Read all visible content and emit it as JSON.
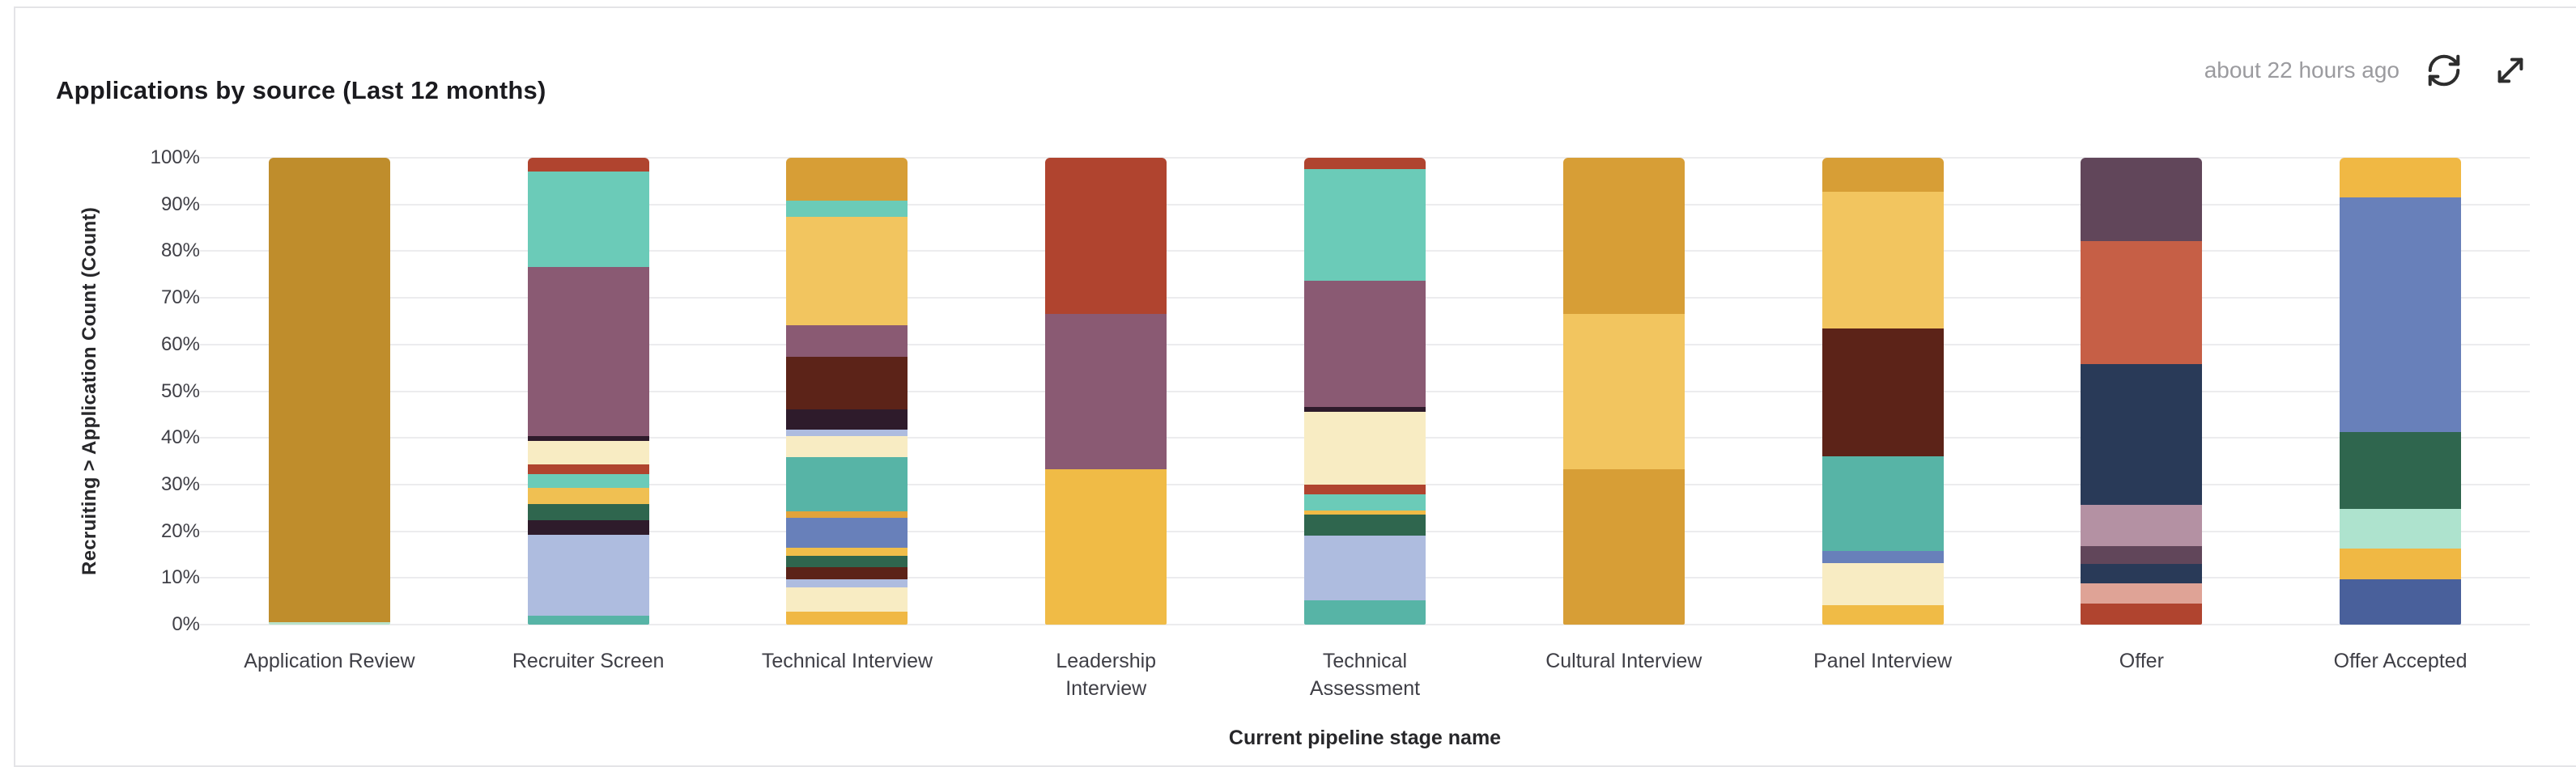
{
  "header": {
    "title": "Applications by source (Last 12 months)",
    "last_updated": "about 22 hours ago",
    "icons": [
      "refresh-icon",
      "expand-icon"
    ]
  },
  "chart_data": {
    "type": "bar",
    "variant": "stacked-percent",
    "title": "Applications by source (Last 12 months)",
    "xlabel": "Current pipeline stage name",
    "ylabel": "Recruiting > Application Count (Count)",
    "ylim": [
      0,
      100
    ],
    "grid": true,
    "legend": "none",
    "y_ticks": [
      "100%",
      "90%",
      "80%",
      "70%",
      "60%",
      "50%",
      "40%",
      "30%",
      "20%",
      "10%",
      "0%"
    ],
    "categories": [
      "Application Review",
      "Recruiter Screen",
      "Technical Interview",
      "Leadership\nInterview",
      "Technical\nAssessment",
      "Cultural Interview",
      "Panel Interview",
      "Offer",
      "Offer Accepted"
    ],
    "note": "segments listed top-to-bottom, values are percent of bar",
    "bars": [
      {
        "category": "Application Review",
        "segments": [
          {
            "color": "#BF8D2C",
            "value": 99.4
          },
          {
            "color": "#B9E3CB",
            "value": 0.6
          }
        ]
      },
      {
        "category": "Recruiter Screen",
        "segments": [
          {
            "color": "#B0442F",
            "value": 2.9
          },
          {
            "color": "#6BCBB8",
            "value": 20.5
          },
          {
            "color": "#8A5A73",
            "value": 36.2
          },
          {
            "color": "#2E1B2B",
            "value": 1.0
          },
          {
            "color": "#F8ECC3",
            "value": 5.1
          },
          {
            "color": "#B0442F",
            "value": 2.0
          },
          {
            "color": "#6BCBB8",
            "value": 3.1
          },
          {
            "color": "#F0C052",
            "value": 3.4
          },
          {
            "color": "#2F664E",
            "value": 3.4
          },
          {
            "color": "#2E1B2B",
            "value": 3.1
          },
          {
            "color": "#AEBCDF",
            "value": 17.4
          },
          {
            "color": "#57B4A6",
            "value": 1.9
          }
        ]
      },
      {
        "category": "Technical Interview",
        "segments": [
          {
            "color": "#D79E36",
            "value": 9.2
          },
          {
            "color": "#6BCBB8",
            "value": 3.4
          },
          {
            "color": "#F2C55F",
            "value": 23.2
          },
          {
            "color": "#8A5A73",
            "value": 6.8
          },
          {
            "color": "#5C2318",
            "value": 11.3
          },
          {
            "color": "#2E1B2B",
            "value": 4.4
          },
          {
            "color": "#AEBCDF",
            "value": 1.4
          },
          {
            "color": "#F8ECC3",
            "value": 4.4
          },
          {
            "color": "#57B4A6",
            "value": 11.6
          },
          {
            "color": "#E2A33A",
            "value": 1.4
          },
          {
            "color": "#6880BA",
            "value": 6.5
          },
          {
            "color": "#F0BE4A",
            "value": 1.7
          },
          {
            "color": "#2F664E",
            "value": 2.4
          },
          {
            "color": "#5C2318",
            "value": 2.7
          },
          {
            "color": "#AEBCDF",
            "value": 1.7
          },
          {
            "color": "#F8ECC3",
            "value": 5.1
          },
          {
            "color": "#F0B844",
            "value": 2.8
          }
        ]
      },
      {
        "category": "Leadership\nInterview",
        "segments": [
          {
            "color": "#B0442F",
            "value": 33.4
          },
          {
            "color": "#8A5A73",
            "value": 33.3
          },
          {
            "color": "#F0BB46",
            "value": 33.3
          }
        ]
      },
      {
        "category": "Technical\nAssessment",
        "segments": [
          {
            "color": "#B0442F",
            "value": 2.4
          },
          {
            "color": "#6BCBB8",
            "value": 23.9
          },
          {
            "color": "#8A5A73",
            "value": 27.1
          },
          {
            "color": "#2E1B2B",
            "value": 1.0
          },
          {
            "color": "#F8ECC3",
            "value": 15.7
          },
          {
            "color": "#B0442F",
            "value": 2.0
          },
          {
            "color": "#6BCBB8",
            "value": 3.4
          },
          {
            "color": "#F0BB46",
            "value": 0.9
          },
          {
            "color": "#2F664E",
            "value": 4.6
          },
          {
            "color": "#AEBCDF",
            "value": 13.8
          },
          {
            "color": "#57B4A6",
            "value": 5.2
          }
        ]
      },
      {
        "category": "Cultural Interview",
        "segments": [
          {
            "color": "#D79E36",
            "value": 33.4
          },
          {
            "color": "#F2C55F",
            "value": 33.3
          },
          {
            "color": "#D79E36",
            "value": 33.3
          }
        ]
      },
      {
        "category": "Panel Interview",
        "segments": [
          {
            "color": "#D79E36",
            "value": 7.2
          },
          {
            "color": "#F2C55F",
            "value": 29.4
          },
          {
            "color": "#5C2318",
            "value": 27.4
          },
          {
            "color": "#57B4A6",
            "value": 20.2
          },
          {
            "color": "#6880BA",
            "value": 2.7
          },
          {
            "color": "#F8ECC3",
            "value": 8.9
          },
          {
            "color": "#F0BB46",
            "value": 4.2
          }
        ]
      },
      {
        "category": "Offer",
        "segments": [
          {
            "color": "#61465A",
            "value": 17.8
          },
          {
            "color": "#C65F46",
            "value": 26.4
          },
          {
            "color": "#293A58",
            "value": 30.1
          },
          {
            "color": "#B491A3",
            "value": 8.9
          },
          {
            "color": "#61465A",
            "value": 3.8
          },
          {
            "color": "#293A58",
            "value": 4.1
          },
          {
            "color": "#DFA396",
            "value": 4.4
          },
          {
            "color": "#B0442F",
            "value": 4.5
          }
        ]
      },
      {
        "category": "Offer Accepted",
        "segments": [
          {
            "color": "#F0B844",
            "value": 8.5
          },
          {
            "color": "#6880BA",
            "value": 50.3
          },
          {
            "color": "#2F664E",
            "value": 16.4
          },
          {
            "color": "#AEE3CE",
            "value": 8.5
          },
          {
            "color": "#F0B844",
            "value": 6.6
          },
          {
            "color": "#49609B",
            "value": 9.7
          }
        ]
      }
    ]
  }
}
